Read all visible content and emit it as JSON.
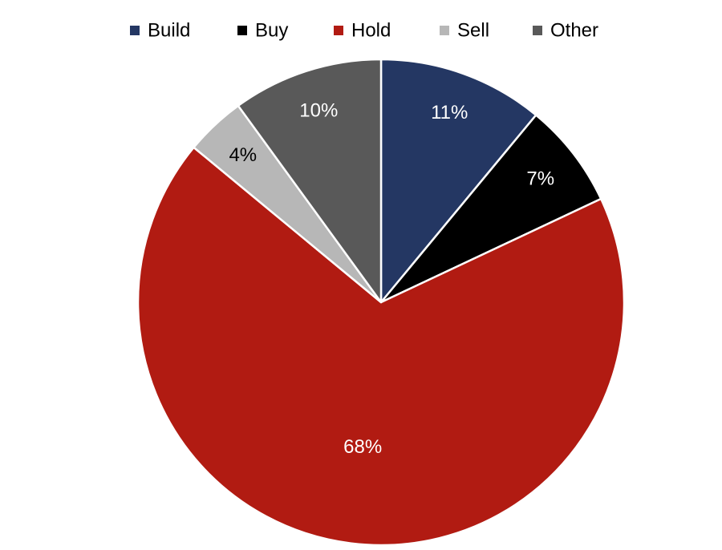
{
  "chart_data": {
    "type": "pie",
    "title": "",
    "legend_position": "top",
    "categories": [
      "Build",
      "Buy",
      "Hold",
      "Sell",
      "Other"
    ],
    "values": [
      11,
      7,
      68,
      4,
      10
    ],
    "data_labels": [
      "11%",
      "7%",
      "68%",
      "4%",
      "10%"
    ],
    "colors": [
      "#243763",
      "#000000",
      "#B11B12",
      "#B7B7B7",
      "#595959"
    ],
    "label_colors": [
      "#ffffff",
      "#ffffff",
      "#ffffff",
      "#000000",
      "#ffffff"
    ]
  }
}
